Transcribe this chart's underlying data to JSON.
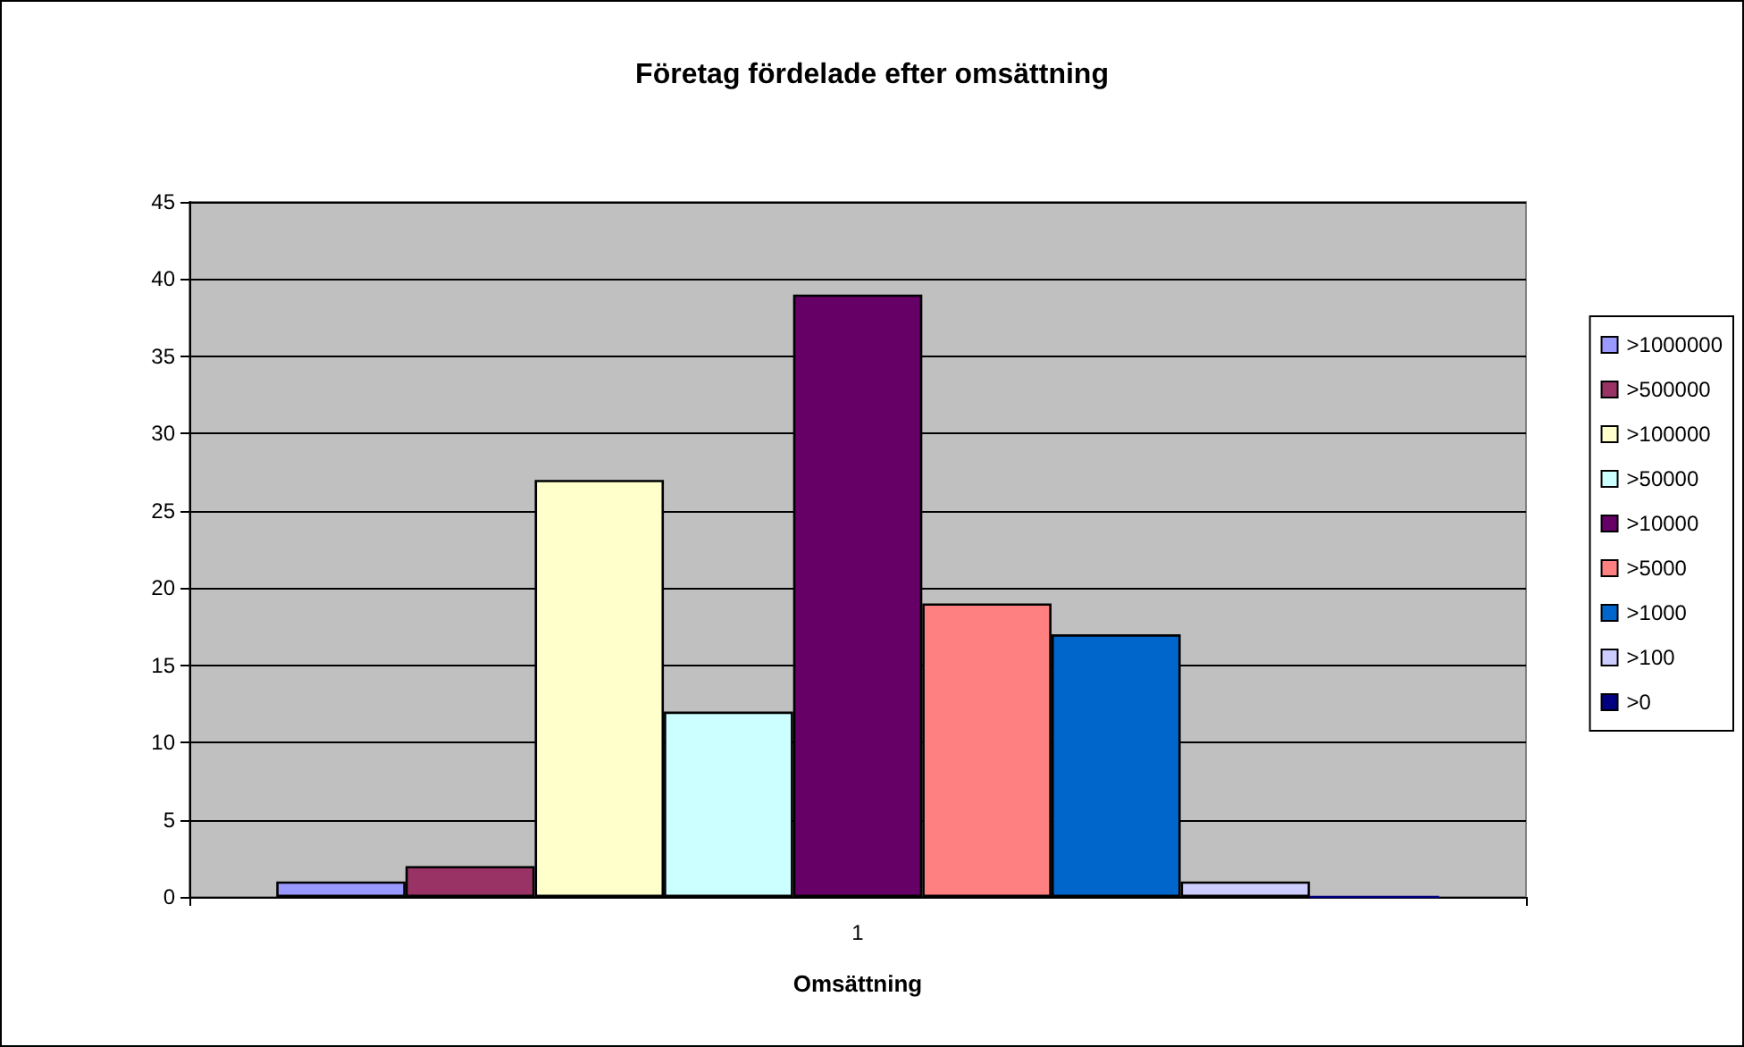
{
  "chart_data": {
    "type": "bar",
    "title": "Företag fördelade efter omsättning",
    "xlabel": "Omsättning",
    "categories": [
      "1"
    ],
    "series": [
      {
        "name": ">1000000",
        "color": "#9999ff",
        "values": [
          1
        ]
      },
      {
        "name": ">500000",
        "color": "#993366",
        "values": [
          2
        ]
      },
      {
        "name": ">100000",
        "color": "#ffffcc",
        "values": [
          27
        ]
      },
      {
        "name": ">50000",
        "color": "#ccffff",
        "values": [
          12
        ]
      },
      {
        "name": ">10000",
        "color": "#660066",
        "values": [
          39
        ]
      },
      {
        "name": ">5000",
        "color": "#ff8080",
        "values": [
          19
        ]
      },
      {
        "name": ">1000",
        "color": "#0066cc",
        "values": [
          17
        ]
      },
      {
        "name": ">100",
        "color": "#ccccff",
        "values": [
          1
        ]
      },
      {
        "name": ">0",
        "color": "#000080",
        "values": [
          0
        ]
      }
    ],
    "ylim": [
      0,
      45
    ],
    "yticks": [
      0,
      5,
      10,
      15,
      20,
      25,
      30,
      35,
      40,
      45
    ],
    "grid": "y",
    "legend": "right"
  }
}
